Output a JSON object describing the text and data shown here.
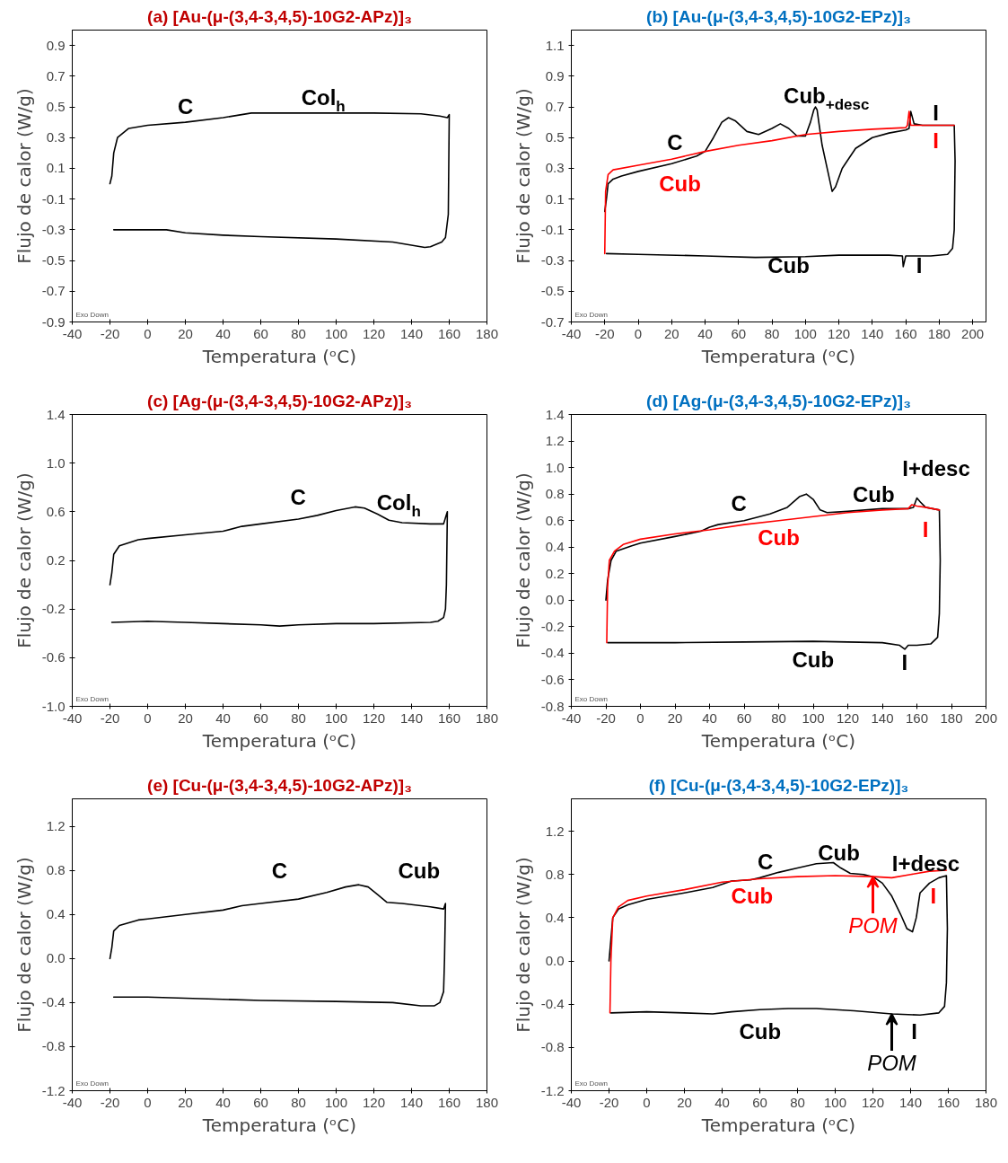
{
  "chart_data": [
    {
      "type": "line",
      "title": "(a) [Au-(μ-(3,4-3,4,5)-10G2-APz)]₃",
      "xlabel": "Temperatura (ᵒC)",
      "ylabel": "Flujo de calor (W/g)",
      "xlim": [
        -40,
        180
      ],
      "xticks": [
        -40,
        -20,
        0,
        20,
        40,
        60,
        80,
        100,
        120,
        140,
        160,
        180
      ],
      "ylim": [
        -0.9,
        1.0
      ],
      "yticks": [
        -0.9,
        -0.7,
        -0.5,
        -0.3,
        -0.1,
        0.1,
        0.3,
        0.5,
        0.7,
        0.9
      ],
      "series": [
        {
          "color": "#000000",
          "x": [
            -20,
            -19,
            -18,
            -16,
            -10,
            0,
            20,
            40,
            55,
            80,
            120,
            145,
            155,
            159,
            160,
            159.5,
            158,
            156,
            150,
            147,
            130,
            100,
            60,
            40,
            20,
            10,
            -18
          ],
          "values": [
            0.0,
            0.05,
            0.2,
            0.3,
            0.36,
            0.38,
            0.4,
            0.43,
            0.46,
            0.46,
            0.46,
            0.455,
            0.44,
            0.43,
            0.45,
            -0.2,
            -0.35,
            -0.38,
            -0.41,
            -0.415,
            -0.38,
            -0.36,
            -0.345,
            -0.335,
            -0.32,
            -0.3,
            -0.3
          ]
        }
      ],
      "annotations": [
        "C",
        "Col$_{h}$",
        "Exo Down"
      ]
    },
    {
      "type": "line",
      "title": "(b) [Au-(μ-(3,4-3,4,5)-10G2-EPz)]₃",
      "xlabel": "Temperatura (ᵒC)",
      "ylabel": "Flujo de calor (W/g)",
      "xlim": [
        -40,
        208
      ],
      "xticks": [
        -40,
        -20,
        0,
        20,
        40,
        60,
        80,
        100,
        120,
        140,
        160,
        180,
        200
      ],
      "ylim": [
        -0.7,
        1.2
      ],
      "yticks": [
        -0.7,
        -0.5,
        -0.3,
        -0.1,
        0.1,
        0.3,
        0.5,
        0.7,
        0.9,
        1.1
      ],
      "series": [
        {
          "color": "#000000",
          "x": [
            -20,
            -19,
            -18,
            -15,
            -10,
            0,
            20,
            35,
            40,
            45,
            50,
            54,
            58,
            65,
            72,
            80,
            85,
            90,
            95,
            100,
            103,
            105,
            106,
            107,
            108,
            110,
            113,
            116,
            118,
            122,
            130,
            140,
            150,
            160,
            162,
            163,
            165,
            170,
            180,
            189,
            189.5,
            189,
            188,
            185,
            175,
            165,
            160,
            158.5,
            158,
            150,
            120,
            100,
            70,
            40,
            0,
            -19
          ],
          "values": [
            0.02,
            0.1,
            0.2,
            0.23,
            0.25,
            0.28,
            0.33,
            0.38,
            0.41,
            0.5,
            0.6,
            0.63,
            0.61,
            0.54,
            0.52,
            0.56,
            0.59,
            0.56,
            0.51,
            0.51,
            0.6,
            0.68,
            0.7,
            0.68,
            0.6,
            0.45,
            0.3,
            0.15,
            0.18,
            0.3,
            0.43,
            0.5,
            0.53,
            0.55,
            0.56,
            0.67,
            0.59,
            0.58,
            0.58,
            0.58,
            0.35,
            -0.1,
            -0.22,
            -0.26,
            -0.27,
            -0.27,
            -0.27,
            -0.34,
            -0.27,
            -0.265,
            -0.265,
            -0.275,
            -0.28,
            -0.27,
            -0.26,
            -0.255
          ]
        },
        {
          "color": "#ff0000",
          "x": [
            -20,
            -19.5,
            -18,
            -15,
            0,
            20,
            40,
            60,
            80,
            100,
            120,
            140,
            160,
            161,
            162,
            163,
            170,
            189
          ],
          "values": [
            -0.255,
            0.15,
            0.26,
            0.29,
            0.32,
            0.36,
            0.41,
            0.45,
            0.48,
            0.52,
            0.54,
            0.555,
            0.565,
            0.58,
            0.67,
            0.58,
            0.58,
            0.58
          ]
        }
      ],
      "annotations": [
        "C",
        "Cub",
        "Cub$_{+desc}$",
        "I",
        "I",
        "Cub",
        "I",
        "Exo Down"
      ]
    },
    {
      "type": "line",
      "title": "(c) [Ag-(μ-(3,4-3,4,5)-10G2-APz)]₃",
      "xlabel": "Temperatura (ᵒC)",
      "ylabel": "Flujo de calor (W/g)",
      "xlim": [
        -40,
        180
      ],
      "xticks": [
        -40,
        -20,
        0,
        20,
        40,
        60,
        80,
        100,
        120,
        140,
        160,
        180
      ],
      "ylim": [
        -1.0,
        1.4
      ],
      "yticks": [
        {
          "value": -1.0,
          "label": "-1.0"
        },
        -0.6,
        -0.2,
        0.2,
        0.6,
        {
          "value": 1.0,
          "label": "1.0"
        },
        1.4
      ],
      "series": [
        {
          "color": "#000000",
          "x": [
            -20,
            -19,
            -18,
            -15,
            -5,
            0,
            20,
            40,
            50,
            60,
            80,
            90,
            100,
            110,
            115,
            122,
            128,
            135,
            150,
            157,
            158,
            159,
            158.5,
            158,
            157,
            154,
            150,
            120,
            100,
            80,
            70,
            60,
            40,
            20,
            0,
            -19
          ],
          "values": [
            0.0,
            0.1,
            0.25,
            0.32,
            0.37,
            0.38,
            0.41,
            0.44,
            0.48,
            0.5,
            0.54,
            0.57,
            0.61,
            0.64,
            0.63,
            0.58,
            0.53,
            0.51,
            0.5,
            0.5,
            0.55,
            0.6,
            0.0,
            -0.2,
            -0.27,
            -0.3,
            -0.31,
            -0.32,
            -0.32,
            -0.33,
            -0.34,
            -0.33,
            -0.32,
            -0.31,
            -0.3,
            -0.31
          ]
        }
      ],
      "annotations": [
        "C",
        "Col$_{h}$",
        "Exo Down"
      ]
    },
    {
      "type": "line",
      "title": "(d) [Ag-(μ-(3,4-3,4,5)-10G2-EPz)]₃",
      "xlabel": "Temperatura (ᵒC)",
      "ylabel": "Flujo de calor (W/g)",
      "xlim": [
        -40,
        200
      ],
      "xticks": [
        -40,
        -20,
        0,
        20,
        40,
        60,
        80,
        100,
        120,
        140,
        160,
        180,
        200
      ],
      "ylim": [
        -0.8,
        1.4
      ],
      "yticks": [
        -0.8,
        -0.6,
        -0.4,
        -0.2,
        {
          "value": 0.0,
          "label": "0.0"
        },
        0.2,
        0.4,
        0.6,
        0.8,
        {
          "value": 1.0,
          "label": "1.0"
        },
        1.2,
        1.4
      ],
      "series": [
        {
          "color": "#000000",
          "x": [
            -20,
            -19,
            -17,
            -14,
            -5,
            0,
            20,
            35,
            40,
            45,
            60,
            75,
            85,
            92,
            96,
            100,
            104,
            108,
            120,
            140,
            155,
            158,
            160,
            162,
            165,
            173,
            173.5,
            173,
            172,
            168,
            160,
            155,
            153,
            150,
            140,
            100,
            60,
            20,
            -19
          ],
          "values": [
            0.0,
            0.15,
            0.3,
            0.37,
            0.41,
            0.43,
            0.48,
            0.52,
            0.55,
            0.57,
            0.6,
            0.65,
            0.7,
            0.78,
            0.8,
            0.76,
            0.68,
            0.66,
            0.67,
            0.69,
            0.69,
            0.7,
            0.77,
            0.74,
            0.7,
            0.68,
            0.3,
            -0.1,
            -0.28,
            -0.33,
            -0.34,
            -0.34,
            -0.37,
            -0.34,
            -0.32,
            -0.31,
            -0.315,
            -0.32,
            -0.32
          ]
        },
        {
          "color": "#ff0000",
          "x": [
            -19.5,
            -19,
            -18,
            -15,
            -10,
            0,
            20,
            40,
            60,
            80,
            100,
            120,
            140,
            155,
            157,
            160,
            165,
            173
          ],
          "values": [
            -0.32,
            0.1,
            0.3,
            0.37,
            0.42,
            0.46,
            0.5,
            0.53,
            0.57,
            0.6,
            0.63,
            0.66,
            0.68,
            0.69,
            0.72,
            0.71,
            0.7,
            0.68
          ]
        }
      ],
      "annotations": [
        "C",
        "Cub",
        "I+desc",
        "Cub",
        "I",
        "Cub",
        "I",
        "Exo Down"
      ]
    },
    {
      "type": "line",
      "title": "(e) [Cu-(μ-(3,4-3,4,5)-10G2-APz)]₃",
      "xlabel": "Temperatura (ᵒC)",
      "ylabel": "Flujo de calor (W/g)",
      "xlim": [
        -40,
        180
      ],
      "xticks": [
        -40,
        -20,
        0,
        20,
        40,
        60,
        80,
        100,
        120,
        140,
        160,
        180
      ],
      "ylim": [
        -1.2,
        1.45
      ],
      "yticks": [
        -1.2,
        -0.8,
        -0.4,
        {
          "value": 0.0,
          "label": "0.0"
        },
        0.4,
        0.8,
        1.2
      ],
      "series": [
        {
          "color": "#000000",
          "x": [
            -20,
            -19,
            -18,
            -15,
            -5,
            0,
            20,
            40,
            50,
            60,
            80,
            95,
            105,
            112,
            117,
            122,
            127,
            135,
            150,
            157,
            158,
            157.5,
            157,
            155,
            152,
            145,
            130,
            100,
            60,
            40,
            20,
            0,
            -18
          ],
          "values": [
            0.0,
            0.1,
            0.25,
            0.3,
            0.35,
            0.36,
            0.4,
            0.44,
            0.48,
            0.5,
            0.54,
            0.6,
            0.65,
            0.67,
            0.65,
            0.58,
            0.51,
            0.5,
            0.47,
            0.45,
            0.5,
            0.0,
            -0.3,
            -0.4,
            -0.43,
            -0.43,
            -0.4,
            -0.39,
            -0.38,
            -0.37,
            -0.36,
            -0.35,
            -0.35
          ]
        }
      ],
      "annotations": [
        "C",
        "Cub",
        "Exo Down"
      ]
    },
    {
      "type": "line",
      "title": "(f) [Cu-(μ-(3,4-3,4,5)-10G2-EPz)]₃",
      "xlabel": "Temperatura (ᵒC)",
      "ylabel": "Flujo de calor (W/g)",
      "xlim": [
        -40,
        180
      ],
      "xticks": [
        -40,
        -20,
        0,
        20,
        40,
        60,
        80,
        100,
        120,
        140,
        160,
        180
      ],
      "ylim": [
        -1.2,
        1.5
      ],
      "yticks": [
        -1.2,
        -0.8,
        -0.4,
        {
          "value": 0.0,
          "label": "0.0"
        },
        0.4,
        0.8,
        1.2
      ],
      "series": [
        {
          "color": "#000000",
          "x": [
            -20,
            -19,
            -18,
            -15,
            -10,
            0,
            20,
            35,
            45,
            55,
            60,
            70,
            80,
            90,
            99,
            103,
            108,
            115,
            120,
            125,
            130,
            135,
            138,
            141,
            143,
            145,
            150,
            155,
            159,
            159.5,
            159,
            158,
            155,
            145,
            130,
            110,
            90,
            75,
            60,
            45,
            35,
            20,
            0,
            -19
          ],
          "values": [
            0.0,
            0.2,
            0.4,
            0.48,
            0.52,
            0.57,
            0.63,
            0.68,
            0.74,
            0.75,
            0.77,
            0.82,
            0.86,
            0.9,
            0.91,
            0.86,
            0.81,
            0.8,
            0.78,
            0.72,
            0.6,
            0.42,
            0.3,
            0.27,
            0.4,
            0.63,
            0.72,
            0.77,
            0.79,
            0.3,
            -0.2,
            -0.42,
            -0.48,
            -0.5,
            -0.49,
            -0.46,
            -0.44,
            -0.44,
            -0.45,
            -0.47,
            -0.49,
            -0.48,
            -0.47,
            -0.48
          ]
        },
        {
          "color": "#ff0000",
          "x": [
            -19.5,
            -19,
            -18,
            -15,
            -10,
            0,
            20,
            40,
            60,
            80,
            100,
            120,
            130,
            140,
            150,
            159
          ],
          "values": [
            -0.48,
            0.0,
            0.4,
            0.5,
            0.56,
            0.6,
            0.66,
            0.73,
            0.76,
            0.78,
            0.79,
            0.78,
            0.77,
            0.8,
            0.83,
            0.84
          ]
        }
      ],
      "annotations": [
        "C",
        "Cub",
        "I+desc",
        "Cub",
        "I",
        {
          "text": "POM",
          "x": 120,
          "y": 0.78
        },
        "Cub",
        {
          "text": "POM",
          "x": 130,
          "y": -0.49
        },
        "I",
        "Exo Down"
      ]
    }
  ]
}
